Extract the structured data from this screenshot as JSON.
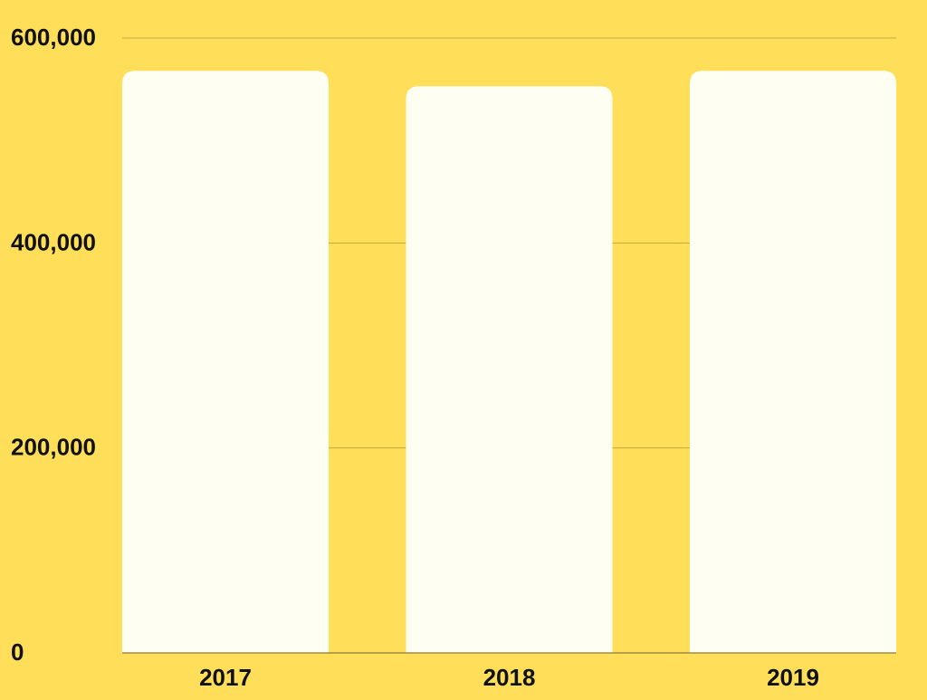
{
  "colors": {
    "background": "#FFDE59",
    "bar": "#FFFEF2",
    "grid": "#C4A93A",
    "axis": "#8A7A3A",
    "text": "#111111"
  },
  "chart_data": {
    "type": "bar",
    "title": "",
    "xlabel": "",
    "ylabel": "",
    "categories": [
      "2017",
      "2018",
      "2019"
    ],
    "values": [
      568000,
      553000,
      568000
    ],
    "ylim": [
      0,
      600000
    ],
    "yticks": [
      0,
      200000,
      400000,
      600000
    ],
    "ytick_labels": [
      "0",
      "200,000",
      "400,000",
      "600,000"
    ],
    "grid": true,
    "legend": "none"
  }
}
